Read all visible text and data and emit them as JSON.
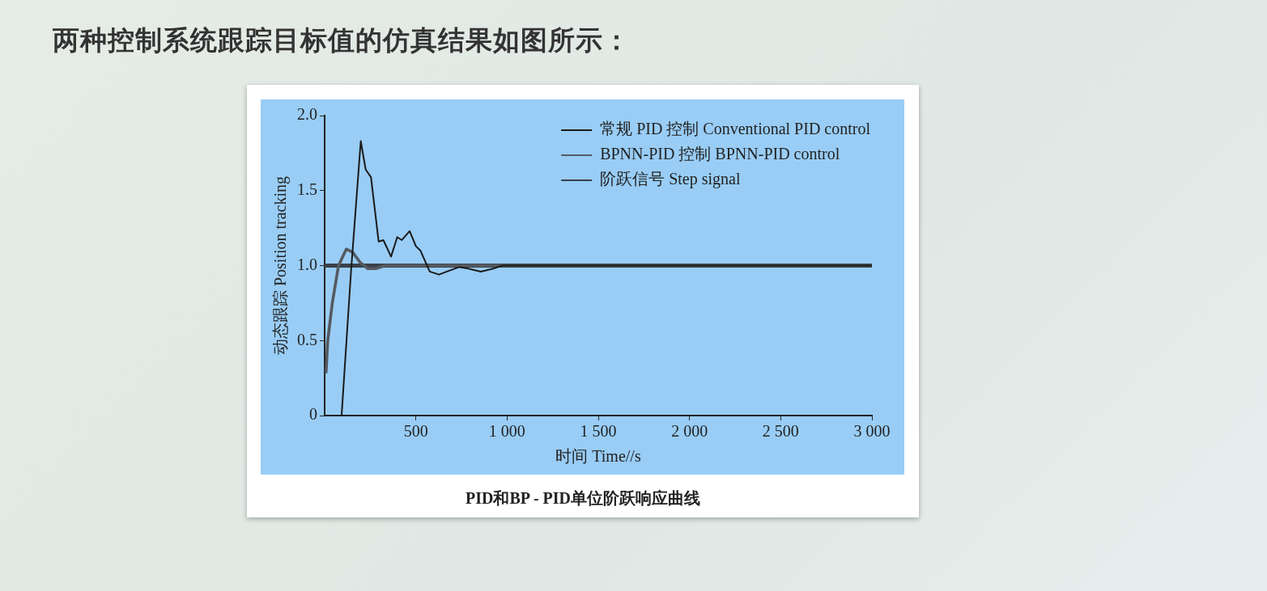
{
  "chart_data": {
    "type": "line",
    "title": "两种控制系统跟踪目标值的仿真结果如图所示：",
    "xlabel": "时间 Time//s",
    "ylabel": "动态跟踪 Position tracking",
    "annotations": [
      "PID和BP - PID单位阶跃响应曲线"
    ],
    "xlim": [
      0,
      3000
    ],
    "xticks": [
      {
        "value": 500,
        "label": "500"
      },
      {
        "value": 1000,
        "label": "1 000"
      },
      {
        "value": 1500,
        "label": "1 500"
      },
      {
        "value": 2000,
        "label": "2 000"
      },
      {
        "value": 2500,
        "label": "2 500"
      },
      {
        "value": 3000,
        "label": "3 000"
      }
    ],
    "ylim": [
      0,
      2
    ],
    "yticks": [
      0,
      0.5,
      {
        "value": 1,
        "label": "1.0"
      },
      1.5,
      {
        "value": 2,
        "label": "2.0"
      }
    ],
    "grid": false,
    "legend": "top right",
    "marker": "none",
    "line_style": "solid",
    "series": [
      {
        "name": "常规 PID 控制 Conventional PID control",
        "color": "#1a1a1a",
        "x": [
          93,
          144,
          198,
          225,
          254,
          296,
          322,
          364,
          398,
          423,
          466,
          500,
          525,
          576,
          627,
          670,
          737,
          788,
          856,
          924,
          973,
          3000
        ],
        "values": [
          0,
          0.95,
          1.83,
          1.64,
          1.59,
          1.16,
          1.17,
          1.06,
          1.19,
          1.17,
          1.23,
          1.13,
          1.1,
          0.96,
          0.94,
          0.96,
          0.99,
          0.98,
          0.96,
          0.98,
          1,
          1
        ]
      },
      {
        "name": "BPNN-PID 控制 BPNN-PID control",
        "color": "#555a60",
        "x": [
          8,
          17,
          42,
          76,
          119,
          153,
          195,
          237,
          280,
          331,
          3000
        ],
        "values": [
          0.29,
          0.5,
          0.75,
          1,
          1.11,
          1.09,
          1.02,
          0.98,
          0.98,
          1,
          1
        ]
      },
      {
        "name": "阶跃信号 Step signal",
        "color": "#3a4048",
        "x": [
          0,
          3000
        ],
        "values": [
          1,
          1
        ]
      }
    ]
  }
}
